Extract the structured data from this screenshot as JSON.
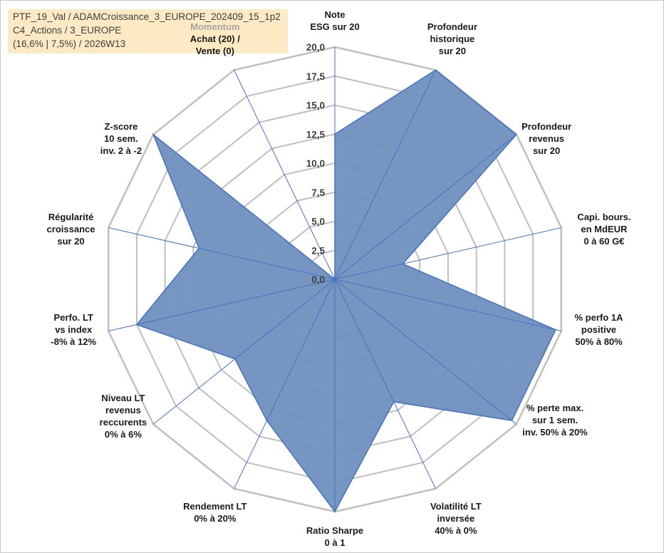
{
  "info_box": {
    "line1": "PTF_19_Val / ADAMCroissance_3_EUROPE_202409_15_1p2",
    "line2": "C4_Actions / 3_EUROPE",
    "line3": "(16,6% | 7,5%) / 2026W13"
  },
  "chart_data": {
    "type": "radar",
    "rmin": 0,
    "rmax": 20,
    "ticks": [
      "0,0",
      "2,5",
      "5,0",
      "7,5",
      "10,0",
      "12,5",
      "15,0",
      "17,5",
      "20,0"
    ],
    "grid": true,
    "axes": [
      {
        "lines": [
          "Note",
          "ESG sur 20"
        ],
        "value": 12.5
      },
      {
        "lines": [
          "Profondeur",
          "historique",
          "sur 20"
        ],
        "value": 20
      },
      {
        "lines": [
          "Profondeur",
          "revenus",
          "sur 20"
        ],
        "value": 20
      },
      {
        "lines": [
          "Capi. bours.",
          "en MdEUR",
          "0 à 60 G€"
        ],
        "value": 6
      },
      {
        "lines": [
          "% perfo 1A",
          "positive",
          "50% à 80%"
        ],
        "value": 19.5
      },
      {
        "lines": [
          "% perte max.",
          "sur 1 sem.",
          "inv. 50% à 20%"
        ],
        "value": 19.5
      },
      {
        "lines": [
          "Volatilité LT",
          "inversée",
          "40% à 0%"
        ],
        "value": 11.7
      },
      {
        "lines": [
          "Ratio Sharpe",
          "0 à 1"
        ],
        "value": 20
      },
      {
        "lines": [
          "Rendement LT",
          "0% à 20%"
        ],
        "value": 13.5
      },
      {
        "lines": [
          "Niveau LT",
          "revenus",
          "reccurents",
          "0% à 6%"
        ],
        "value": 11
      },
      {
        "lines": [
          "Perfo. LT",
          "vs index",
          "-8% à 12%"
        ],
        "value": 17.5
      },
      {
        "lines": [
          "Régularité",
          "croissance",
          "sur 20"
        ],
        "value": 12
      },
      {
        "lines": [
          "Z-score",
          "10 sem.",
          "inv. 2 à -2"
        ],
        "value": 20
      },
      {
        "lines": [
          "Momentum",
          "Achat (20) /",
          "Vente (0)"
        ],
        "value": 0
      }
    ],
    "series": [
      {
        "values": [
          12.5,
          20,
          20,
          6,
          19.5,
          19.5,
          11.7,
          20,
          13.5,
          11,
          17.5,
          12,
          20,
          0
        ]
      }
    ],
    "colors": {
      "fill": "#6f8fbd",
      "stroke": "#4472c4",
      "grid": "#bfbfbf",
      "spokes": "#4472c4",
      "momentum_title": "#a6a6a6"
    }
  }
}
